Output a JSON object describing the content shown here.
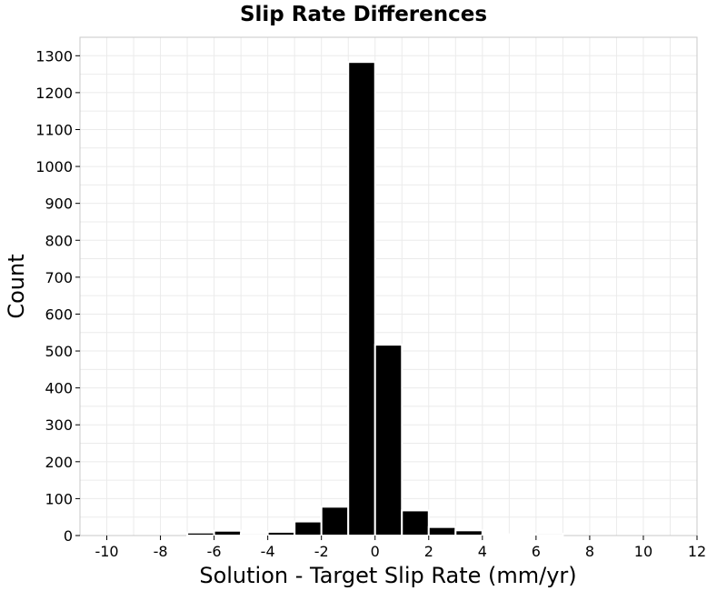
{
  "chart_data": {
    "type": "bar",
    "title": "Slip Rate Differences",
    "xlabel": "Solution - Target Slip Rate (mm/yr)",
    "ylabel": "Count",
    "xlim": [
      -11,
      12
    ],
    "ylim": [
      0,
      1350
    ],
    "x_ticks": [
      "-10",
      "-8",
      "-6",
      "-4",
      "-2",
      "0",
      "2",
      "4",
      "6",
      "8",
      "10",
      "12"
    ],
    "y_ticks": [
      "0",
      "100",
      "200",
      "300",
      "400",
      "500",
      "600",
      "700",
      "800",
      "900",
      "1000",
      "1100",
      "1200",
      "1300"
    ],
    "bin_width": 1,
    "bins": [
      {
        "x": -6.5,
        "value": 8
      },
      {
        "x": -5.5,
        "value": 13
      },
      {
        "x": -4.5,
        "value": 5
      },
      {
        "x": -3.5,
        "value": 10
      },
      {
        "x": -2.5,
        "value": 38
      },
      {
        "x": -1.5,
        "value": 78
      },
      {
        "x": -0.5,
        "value": 1283
      },
      {
        "x": 0.5,
        "value": 517
      },
      {
        "x": 1.5,
        "value": 68
      },
      {
        "x": 2.5,
        "value": 23
      },
      {
        "x": 3.5,
        "value": 14
      },
      {
        "x": 4.5,
        "value": 3
      },
      {
        "x": 5.5,
        "value": 3
      },
      {
        "x": 6.5,
        "value": 5
      }
    ],
    "grid": true,
    "colors": {
      "bar": "#000000",
      "bar_edge": "#ffffff",
      "grid": "#ebebeb",
      "frame": "#c8c8c8"
    }
  }
}
